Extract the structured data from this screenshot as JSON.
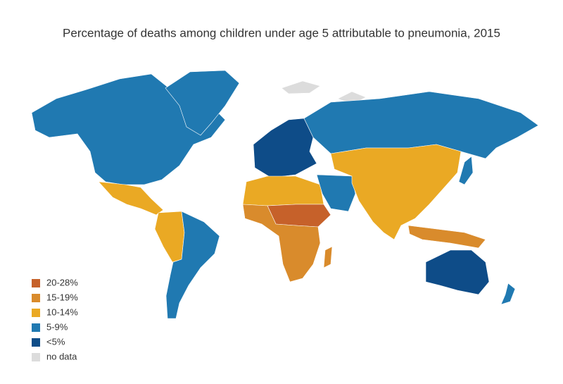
{
  "title": "Percentage of deaths among children under age 5 attributable to pneumonia, 2015",
  "legend": [
    {
      "label": "20-28%",
      "color": "#c6612a"
    },
    {
      "label": "15-19%",
      "color": "#d98b2c"
    },
    {
      "label": "10-14%",
      "color": "#eaa924"
    },
    {
      "label": "5-9%",
      "color": "#2079b1"
    },
    {
      "label": "<5%",
      "color": "#0e4c88"
    },
    {
      "label": "no data",
      "color": "#dcdcdc"
    }
  ]
}
